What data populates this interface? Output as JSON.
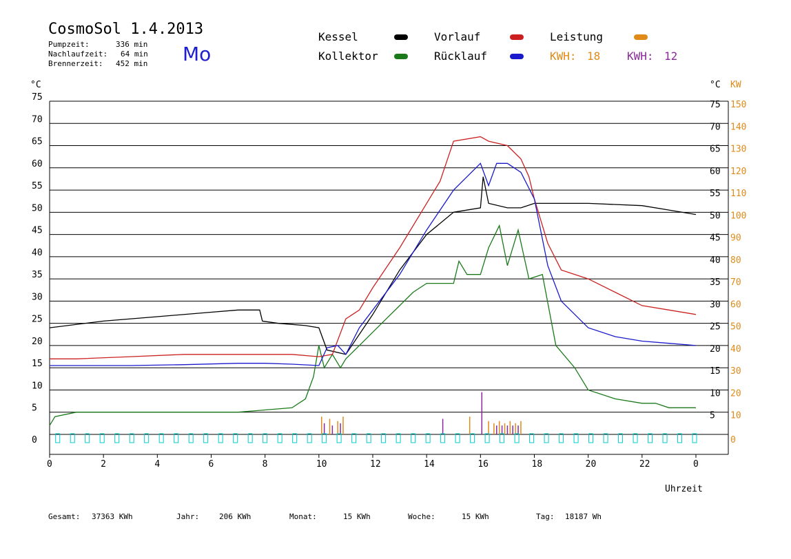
{
  "header": {
    "title": "CosmoSol 1.4.2013",
    "day": "Mo",
    "stats": [
      {
        "label": "Pumpzeit:",
        "value": "336 min"
      },
      {
        "label": "Nachlaufzeit:",
        "value": "64 min"
      },
      {
        "label": "Brennerzeit:",
        "value": "452 min"
      }
    ]
  },
  "legend": {
    "kessel": "Kessel",
    "kollektor": "Kollektor",
    "vorlauf": "Vorlauf",
    "ruecklauf": "Rücklauf",
    "leistung": "Leistung",
    "kwh1_label": "KWH:",
    "kwh1_value": "18",
    "kwh2_label": "KWH:",
    "kwh2_value": "12"
  },
  "colors": {
    "kessel": "#000000",
    "kollektor": "#1a7a1a",
    "vorlauf": "#cc2020",
    "ruecklauf": "#1a1acc",
    "leistung": "#e08a1a",
    "kwh2": "#8a2a9a",
    "pump": "#00cccc"
  },
  "footer": {
    "gesamt_label": "Gesamt:",
    "gesamt_value": "37363 KWh",
    "jahr_label": "Jahr:",
    "jahr_value": "206 KWh",
    "monat_label": "Monat:",
    "monat_value": "15 KWh",
    "woche_label": "Woche:",
    "woche_value": "15 KWh",
    "tag_label": "Tag:",
    "tag_value": "18187 Wh"
  },
  "chart_data": {
    "type": "line",
    "xlabel": "Uhrzeit",
    "ylabel_left": "°C",
    "ylabel_right": "°C",
    "ylabel_right2": "KW",
    "xlim": [
      0,
      24
    ],
    "ylim": [
      0,
      75
    ],
    "y2lim": [
      0,
      150
    ],
    "x_ticks": [
      "0",
      "2",
      "4",
      "6",
      "8",
      "10",
      "12",
      "14",
      "16",
      "18",
      "20",
      "22",
      "0"
    ],
    "y_ticks": [
      0,
      5,
      10,
      15,
      20,
      25,
      30,
      35,
      40,
      45,
      50,
      55,
      60,
      65,
      70,
      75
    ],
    "y2_ticks": [
      0,
      10,
      20,
      30,
      40,
      50,
      60,
      70,
      80,
      90,
      100,
      110,
      120,
      130,
      140,
      150
    ],
    "grid": true,
    "series": [
      {
        "name": "Kessel",
        "x": [
          0,
          2,
          4,
          6,
          7,
          7.8,
          7.9,
          8.5,
          9.5,
          10,
          10.3,
          11,
          12,
          13,
          14,
          15,
          16,
          16.1,
          16.3,
          17,
          17.5,
          18,
          20,
          22,
          23,
          24
        ],
        "y": [
          24,
          25.5,
          26.5,
          27.5,
          28,
          28,
          25.5,
          25,
          24.5,
          24,
          19,
          18,
          27,
          37,
          45,
          50,
          51,
          58,
          52,
          51,
          51,
          52,
          52,
          51.5,
          50.5,
          49.5
        ]
      },
      {
        "name": "Kollektor",
        "x": [
          0,
          0.2,
          1,
          3,
          5,
          7,
          8,
          9,
          9.5,
          9.8,
          10,
          10.2,
          10.5,
          10.8,
          11,
          11.5,
          12,
          12.5,
          13,
          13.5,
          14,
          14.5,
          15,
          15.2,
          15.5,
          16,
          16.3,
          16.7,
          17,
          17.4,
          17.8,
          18.3,
          18.8,
          19.5,
          20,
          21,
          22,
          22.5,
          23,
          24
        ],
        "y": [
          2,
          4,
          5,
          5,
          5,
          5,
          5.5,
          6,
          8,
          13,
          20,
          15,
          18,
          15,
          17,
          20,
          23,
          26,
          29,
          32,
          34,
          34,
          34,
          39,
          36,
          36,
          42,
          47,
          38,
          46,
          35,
          36,
          20,
          15,
          10,
          8,
          7,
          7,
          6,
          6
        ]
      },
      {
        "name": "Vorlauf",
        "x": [
          0,
          1,
          3,
          5,
          7,
          8,
          9,
          10,
          10.5,
          11,
          11.5,
          12,
          13,
          14,
          14.5,
          15,
          16,
          16.3,
          17,
          17.5,
          17.8,
          18,
          18.5,
          19,
          20,
          21,
          22,
          23,
          24
        ],
        "y": [
          17,
          17,
          17.5,
          18,
          18,
          18,
          18,
          17.5,
          18,
          26,
          28,
          33,
          42,
          52,
          57,
          66,
          67,
          66,
          65,
          62,
          58,
          53,
          43,
          37,
          35,
          32,
          29,
          28,
          27
        ]
      },
      {
        "name": "Rücklauf",
        "x": [
          0,
          1,
          3,
          5,
          7,
          8,
          9,
          10,
          10.3,
          10.7,
          11,
          11.5,
          12,
          13,
          14,
          15,
          15.5,
          16,
          16.3,
          16.6,
          17,
          17.5,
          18,
          18.5,
          19,
          20,
          21,
          22,
          23,
          24
        ],
        "y": [
          15.5,
          15.5,
          15.5,
          15.7,
          16,
          16,
          15.8,
          15.5,
          19.5,
          20,
          18,
          24,
          28,
          36,
          46,
          55,
          58,
          61,
          56,
          61,
          61,
          59,
          53,
          38,
          30,
          24,
          22,
          21,
          20.5,
          20
        ]
      }
    ],
    "bars_kw": [
      {
        "name": "Leistung",
        "x": [
          10.1,
          10.4,
          10.7,
          10.9,
          15.6,
          16.3,
          16.5,
          16.7,
          16.9,
          17.1,
          17.3,
          17.5
        ],
        "y2": [
          8,
          7,
          6,
          8,
          8,
          6,
          5,
          6,
          5,
          6,
          5,
          6
        ]
      },
      {
        "name": "KWH 12",
        "x": [
          10.2,
          10.5,
          10.8,
          14.6,
          16.05,
          16.6,
          16.8,
          17.0,
          17.2,
          17.4
        ],
        "y2": [
          5,
          4,
          5,
          7,
          19,
          4,
          4,
          4,
          4,
          4
        ]
      }
    ],
    "pump_state": {
      "name": "Pumpe",
      "baseline": 0
    }
  }
}
